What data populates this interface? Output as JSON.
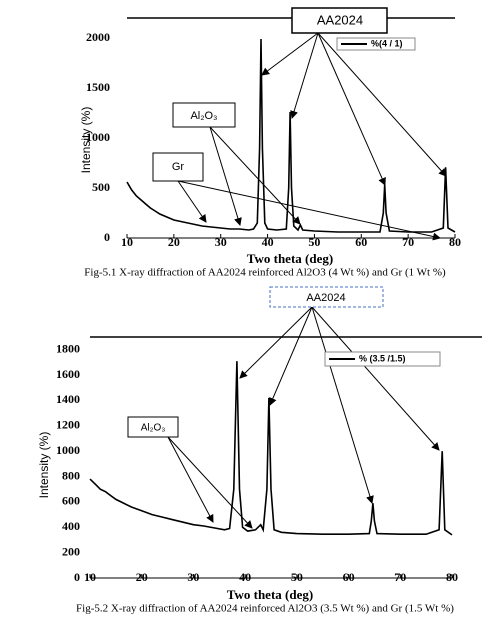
{
  "chart_data": [
    {
      "type": "line",
      "caption": "Fig-5.1 X-ray diffraction of AA2024 reinforced Al2O3 (4 Wt %) and Gr (1 Wt %)",
      "x_label": "Two theta (deg)",
      "y_label": "Intensity (%)",
      "annotations": [
        "AA2024",
        "Al₂O₃",
        "Gr"
      ],
      "xlim": [
        10,
        80
      ],
      "xticks": [
        10,
        20,
        30,
        40,
        50,
        60,
        70,
        80
      ],
      "ylim": [
        0,
        2200
      ],
      "yticks": [
        0,
        500,
        1000,
        1500,
        2000
      ],
      "x": [
        10,
        11,
        12,
        13,
        14,
        15,
        16,
        17,
        18,
        19,
        20,
        22,
        24,
        26,
        28,
        30,
        32,
        34,
        36,
        37,
        37.8,
        38.3,
        38.6,
        38.9,
        39.4,
        40,
        42,
        44,
        44.5,
        44.8,
        45.1,
        45.6,
        46.5,
        47,
        47.5,
        50,
        55,
        60,
        64,
        64.7,
        65,
        65.3,
        66,
        70,
        75,
        77.5,
        78,
        78.5,
        80
      ],
      "series": [
        {
          "name": "%(4 / 1)",
          "color": "#000000",
          "values": [
            560,
            480,
            420,
            380,
            340,
            300,
            270,
            240,
            220,
            200,
            180,
            160,
            140,
            120,
            110,
            100,
            90,
            90,
            80,
            90,
            150,
            900,
            1990,
            900,
            150,
            90,
            80,
            90,
            500,
            1260,
            500,
            120,
            80,
            130,
            80,
            70,
            60,
            60,
            60,
            250,
            535,
            250,
            70,
            60,
            60,
            100,
            707,
            100,
            60
          ]
        }
      ]
    },
    {
      "type": "line",
      "caption": "Fig-5.2 X-ray diffraction of AA2024 reinforced Al2O3 (3.5 Wt %) and Gr (1.5 Wt %)",
      "x_label": "Two theta (deg)",
      "y_label": "Intensity (%)",
      "annotations": [
        "AA2024",
        "Al₂O₃"
      ],
      "xlim": [
        10,
        80
      ],
      "xticks": [
        10,
        20,
        30,
        40,
        50,
        60,
        70,
        80
      ],
      "ylim": [
        0,
        1900
      ],
      "yticks": [
        0,
        200,
        400,
        600,
        800,
        1000,
        1200,
        1400,
        1600,
        1800
      ],
      "x": [
        10,
        11,
        12,
        13,
        14,
        15,
        16,
        18,
        20,
        22,
        24,
        26,
        28,
        30,
        32,
        34,
        36,
        37,
        37.8,
        38.4,
        38.9,
        39.5,
        40.5,
        42,
        43,
        43.5,
        44.2,
        44.6,
        45,
        45.6,
        47,
        50,
        55,
        60,
        64,
        64.4,
        64.7,
        65,
        65.5,
        70,
        75,
        77.5,
        78.1,
        78.6,
        80
      ],
      "series": [
        {
          "name": "% (3.5 /1.5)",
          "color": "#000000",
          "values": [
            780,
            740,
            700,
            680,
            650,
            620,
            600,
            560,
            530,
            500,
            480,
            460,
            440,
            420,
            410,
            395,
            380,
            390,
            700,
            1710,
            700,
            400,
            370,
            380,
            420,
            380,
            700,
            1420,
            700,
            380,
            360,
            350,
            345,
            345,
            350,
            450,
            590,
            450,
            350,
            345,
            345,
            380,
            1000,
            380,
            340
          ]
        }
      ]
    }
  ]
}
